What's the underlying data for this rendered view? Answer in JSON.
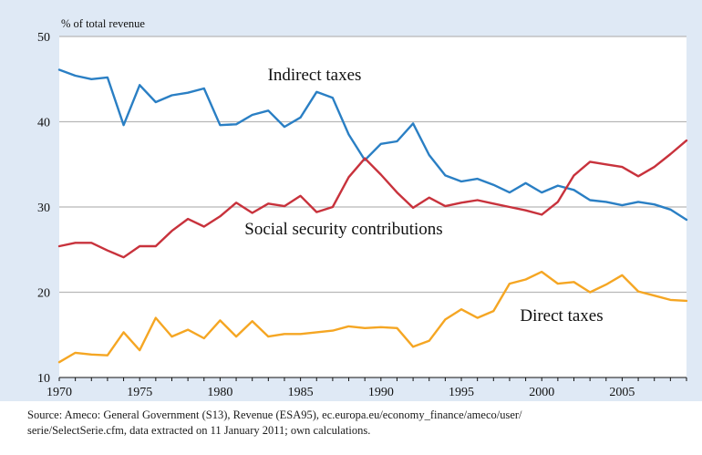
{
  "chart_data": {
    "type": "line",
    "title": "",
    "ylabel": "% of total revenue",
    "xlabel": "",
    "xlim": [
      1970,
      2009
    ],
    "ylim": [
      10,
      50
    ],
    "yticks": [
      10,
      20,
      30,
      40,
      50
    ],
    "xticks": [
      1970,
      1975,
      1980,
      1985,
      1990,
      1995,
      2000,
      2005
    ],
    "grid": true,
    "legend": "inline labels",
    "x": [
      1970,
      1971,
      1972,
      1973,
      1974,
      1975,
      1976,
      1977,
      1978,
      1979,
      1980,
      1981,
      1982,
      1983,
      1984,
      1985,
      1986,
      1987,
      1988,
      1989,
      1990,
      1991,
      1992,
      1993,
      1994,
      1995,
      1996,
      1997,
      1998,
      1999,
      2000,
      2001,
      2002,
      2003,
      2004,
      2005,
      2006,
      2007,
      2008,
      2009
    ],
    "series": [
      {
        "name": "Indirect taxes",
        "color": "#2a7fc4",
        "values": [
          46.1,
          45.4,
          45.0,
          45.2,
          39.6,
          44.3,
          42.3,
          43.1,
          43.4,
          43.9,
          39.6,
          39.7,
          40.8,
          41.3,
          39.4,
          40.5,
          43.5,
          42.8,
          38.5,
          35.5,
          37.4,
          37.7,
          39.8,
          36.1,
          33.7,
          33.0,
          33.3,
          32.6,
          31.7,
          32.8,
          31.7,
          32.5,
          32.0,
          30.8,
          30.6,
          30.2,
          30.6,
          30.3,
          29.7,
          28.5
        ]
      },
      {
        "name": "Social security contributions",
        "color": "#c8323c",
        "values": [
          25.4,
          25.8,
          25.8,
          24.9,
          24.1,
          25.4,
          25.4,
          27.2,
          28.6,
          27.7,
          28.9,
          30.5,
          29.3,
          30.4,
          30.1,
          31.3,
          29.4,
          30.0,
          33.5,
          35.7,
          33.8,
          31.7,
          29.9,
          31.1,
          30.1,
          30.5,
          30.8,
          30.4,
          30.0,
          29.6,
          29.1,
          30.6,
          33.7,
          35.3,
          35.0,
          34.7,
          33.6,
          34.7,
          36.2,
          37.8
        ]
      },
      {
        "name": "Direct taxes",
        "color": "#f5a623",
        "values": [
          11.8,
          12.9,
          12.7,
          12.6,
          15.3,
          13.2,
          17.0,
          14.8,
          15.6,
          14.6,
          16.7,
          14.8,
          16.6,
          14.8,
          15.1,
          15.1,
          15.3,
          15.5,
          16.0,
          15.8,
          15.9,
          15.8,
          13.6,
          14.3,
          16.8,
          18.0,
          17.0,
          17.8,
          21.0,
          21.5,
          22.4,
          21.0,
          21.2,
          20.0,
          20.9,
          22.0,
          20.1,
          19.6,
          19.1,
          19.0
        ]
      }
    ]
  },
  "source": {
    "line1": "Source: Ameco: General Government (S13), Revenue (ESA95), ec.europa.eu/economy_finance/ameco/user/",
    "line2": "serie/SelectSerie.cfm, data extracted on 11 January 2011; own calculations."
  }
}
